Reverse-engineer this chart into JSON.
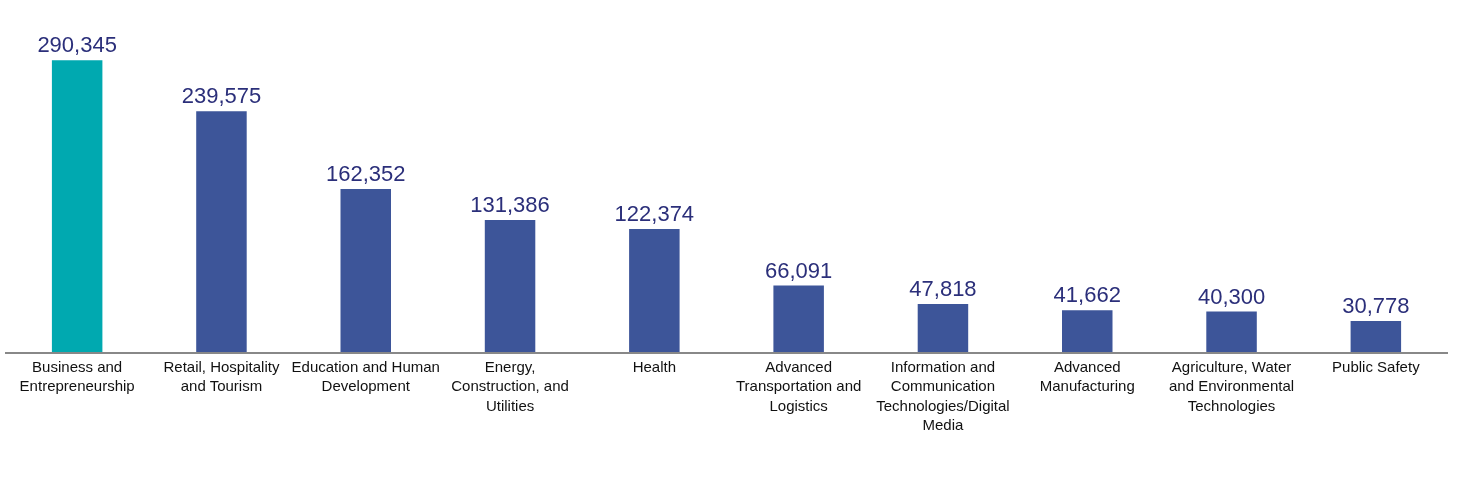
{
  "chart_data": {
    "type": "bar",
    "categories": [
      "Business and Entrepreneurship",
      "Retail, Hospitality and Tourism",
      "Education and Human Development",
      "Energy, Construction, and Utilities",
      "Health",
      "Advanced Transportation and Logistics",
      "Information and Communication Technologies/Digital Media",
      "Advanced Manufacturing",
      "Agriculture, Water and Environmental Technologies",
      "Public Safety"
    ],
    "values": [
      290345,
      239575,
      162352,
      131386,
      122374,
      66091,
      47818,
      41662,
      40300,
      30778
    ],
    "colors": [
      "#00a9b0",
      "#3d5599",
      "#3d5599",
      "#3d5599",
      "#3d5599",
      "#3d5599",
      "#3d5599",
      "#3d5599",
      "#3d5599",
      "#3d5599"
    ],
    "value_labels": [
      "290,345",
      "239,575",
      "162,352",
      "131,386",
      "122,374",
      "66,091",
      "47,818",
      "41,662",
      "40,300",
      "30,778"
    ],
    "grid": false
  }
}
